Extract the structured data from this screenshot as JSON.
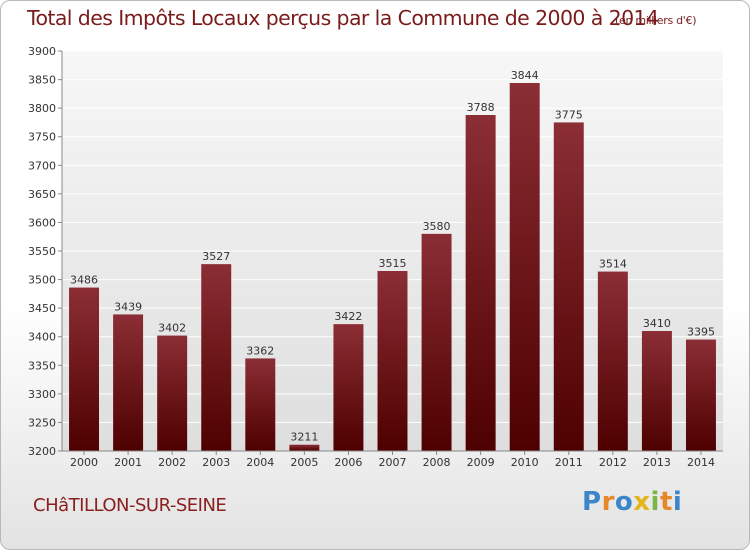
{
  "chart_data": {
    "type": "bar",
    "title": "Total des Impôts Locaux perçus par la Commune de 2000 à 2014",
    "subtitle": "(en milliers d'€)",
    "categories": [
      "2000",
      "2001",
      "2002",
      "2003",
      "2004",
      "2005",
      "2006",
      "2007",
      "2008",
      "2009",
      "2010",
      "2011",
      "2012",
      "2013",
      "2014"
    ],
    "values": [
      3486,
      3439,
      3402,
      3527,
      3362,
      3211,
      3422,
      3515,
      3580,
      3788,
      3844,
      3775,
      3514,
      3410,
      3395
    ],
    "ylim": [
      3200,
      3900
    ],
    "yticks": [
      3200,
      3250,
      3300,
      3350,
      3400,
      3450,
      3500,
      3550,
      3600,
      3650,
      3700,
      3750,
      3800,
      3850,
      3900
    ],
    "xlabel": "",
    "ylabel": "",
    "grid": true,
    "bar_color_top": "#8b2e35",
    "bar_color_bottom": "#4e0000"
  },
  "commune": "CHâTILLON-SUR-SEINE",
  "logo": {
    "text": "Proxiti",
    "letters": [
      "P",
      "r",
      "o",
      "x",
      "i",
      "t",
      "i"
    ],
    "colors": [
      "#3a86c8",
      "#e8862a",
      "#3a86c8",
      "#e3b51a",
      "#7ab648",
      "#e8862a",
      "#3a86c8"
    ]
  }
}
